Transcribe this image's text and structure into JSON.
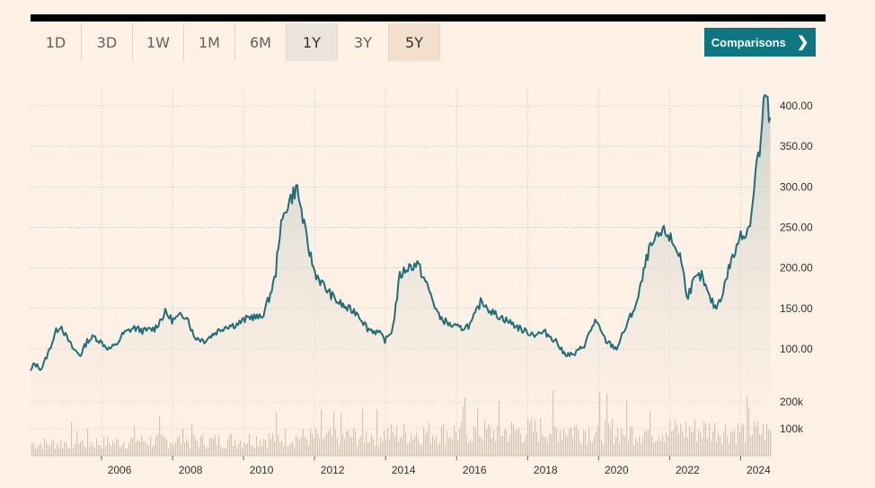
{
  "range_buttons": [
    {
      "label": "1D"
    },
    {
      "label": "3D"
    },
    {
      "label": "1W"
    },
    {
      "label": "1M"
    },
    {
      "label": "6M"
    },
    {
      "label": "1Y"
    },
    {
      "label": "3Y"
    },
    {
      "label": "5Y"
    }
  ],
  "comparisons_label": "Comparisons",
  "comparisons_icon": "chevron-right-icon",
  "colors": {
    "line": "#1f6e78",
    "volume": "#c7b8a7",
    "background": "#fff1e5",
    "accent": "#0d7680"
  },
  "chart_data": {
    "type": "line",
    "price_axis": {
      "range": [
        60,
        420
      ],
      "ticks": [
        "100.00",
        "150.00",
        "200.00",
        "250.00",
        "300.00",
        "350.00",
        "400.00"
      ],
      "tick_values": [
        100,
        150,
        200,
        250,
        300,
        350,
        400
      ],
      "position": "right"
    },
    "volume_axis": {
      "ticks": [
        "100k",
        "200k"
      ],
      "tick_values": [
        100000,
        200000
      ],
      "range": [
        0,
        260000
      ],
      "position": "right"
    },
    "x_axis": {
      "range": [
        2004.0,
        2024.85
      ],
      "ticks": [
        "2006",
        "2008",
        "2010",
        "2012",
        "2014",
        "2016",
        "2018",
        "2020",
        "2022",
        "2024"
      ],
      "tick_values": [
        2006,
        2008,
        2010,
        2012,
        2014,
        2016,
        2018,
        2020,
        2022,
        2024
      ]
    },
    "grid": true,
    "price_series": {
      "x": [
        2004.0,
        2004.1,
        2004.3,
        2004.5,
        2004.7,
        2004.85,
        2005.0,
        2005.2,
        2005.4,
        2005.6,
        2005.8,
        2006.0,
        2006.2,
        2006.4,
        2006.6,
        2006.9,
        2007.2,
        2007.5,
        2007.8,
        2008.0,
        2008.2,
        2008.4,
        2008.6,
        2008.9,
        2009.2,
        2009.5,
        2009.8,
        2010.0,
        2010.2,
        2010.5,
        2010.7,
        2010.9,
        2011.0,
        2011.2,
        2011.5,
        2011.8,
        2012.0,
        2012.3,
        2012.6,
        2012.9,
        2013.2,
        2013.5,
        2013.8,
        2014.0,
        2014.2,
        2014.4,
        2014.6,
        2014.9,
        2015.2,
        2015.5,
        2015.8,
        2016.1,
        2016.4,
        2016.7,
        2017.0,
        2017.3,
        2017.6,
        2017.9,
        2018.2,
        2018.5,
        2018.8,
        2019.0,
        2019.3,
        2019.6,
        2019.9,
        2020.2,
        2020.5,
        2020.8,
        2021.1,
        2021.4,
        2021.7,
        2021.9,
        2022.1,
        2022.3,
        2022.5,
        2022.7,
        2022.9,
        2023.1,
        2023.3,
        2023.5,
        2023.7,
        2023.9,
        2024.0,
        2024.15,
        2024.3,
        2024.45,
        2024.55,
        2024.65,
        2024.72,
        2024.8,
        2024.85
      ],
      "values": [
        72,
        82,
        75,
        95,
        120,
        130,
        115,
        100,
        92,
        110,
        115,
        108,
        100,
        104,
        118,
        126,
        122,
        125,
        145,
        135,
        140,
        142,
        115,
        110,
        120,
        128,
        130,
        135,
        140,
        138,
        160,
        190,
        240,
        275,
        300,
        230,
        195,
        175,
        160,
        150,
        145,
        125,
        120,
        110,
        125,
        190,
        200,
        205,
        175,
        140,
        130,
        125,
        130,
        160,
        145,
        138,
        130,
        122,
        118,
        120,
        110,
        95,
        92,
        105,
        135,
        110,
        100,
        130,
        160,
        220,
        240,
        245,
        230,
        215,
        165,
        185,
        190,
        165,
        150,
        170,
        205,
        225,
        245,
        240,
        265,
        330,
        345,
        400,
        415,
        385,
        383
      ]
    },
    "volume_series": {
      "x": [
        2004.0,
        2005.0,
        2006.0,
        2007.0,
        2008.0,
        2009.0,
        2010.0,
        2011.0,
        2012.0,
        2013.0,
        2014.0,
        2015.0,
        2016.0,
        2017.0,
        2018.0,
        2019.0,
        2020.0,
        2021.0,
        2022.0,
        2023.0,
        2024.0,
        2024.85
      ],
      "values": [
        55000,
        60000,
        60000,
        70000,
        72000,
        68000,
        75000,
        85000,
        85000,
        90000,
        100000,
        105000,
        110000,
        110000,
        118000,
        125000,
        118000,
        112000,
        118000,
        120000,
        115000,
        110000
      ]
    }
  }
}
